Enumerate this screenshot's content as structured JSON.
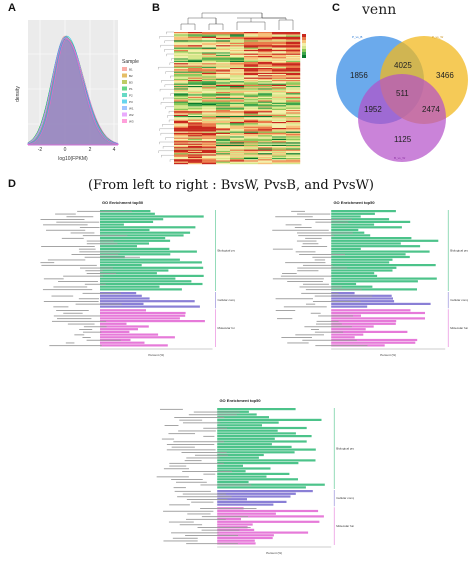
{
  "panels": {
    "a": "A",
    "b": "B",
    "c": "C",
    "d": "D"
  },
  "density": {
    "ylabel": "density",
    "xlabel": "log10(FPKM)",
    "x_ticks": [
      "-2",
      "0",
      "2",
      "4"
    ],
    "legend_title": "Sample",
    "samples": [
      "B1",
      "B2",
      "B3",
      "P1",
      "P2",
      "P3",
      "W1",
      "W2",
      "W3"
    ],
    "colors": [
      "#f8766d",
      "#d39200",
      "#93aa00",
      "#00ba38",
      "#00c19f",
      "#00b9e3",
      "#619cff",
      "#db72fb",
      "#ff61c3"
    ]
  },
  "venn": {
    "title": "venn",
    "sets": [
      {
        "name": "P_vs_B",
        "color": "#3a8ee6"
      },
      {
        "name": "P_vs_W",
        "color": "#f2b81f"
      },
      {
        "name": "B_vs_W",
        "color": "#b44fc9"
      }
    ],
    "values": {
      "only_a": "1856",
      "only_b": "3466",
      "only_c": "1125",
      "ab": "4025",
      "ac": "1952",
      "bc": "2474",
      "abc": "511"
    }
  },
  "caption": "(From left to right : BvsW, PvsB, and PvsW)",
  "go": {
    "title": "GO Enrichment top50",
    "xlabel": "Percent (%)",
    "categories": [
      "Biological process",
      "Cellular component",
      "Molecular function"
    ],
    "category_colors": [
      "#4cc38a",
      "#8a7fd6",
      "#e67ad9"
    ]
  },
  "chart_data": [
    {
      "type": "area",
      "title": "",
      "xlabel": "log10(FPKM)",
      "ylabel": "density",
      "xlim": [
        -2.5,
        5
      ],
      "series_names": [
        "B1",
        "B2",
        "B3",
        "P1",
        "P2",
        "P3",
        "W1",
        "W2",
        "W3"
      ]
    },
    {
      "type": "heatmap",
      "title": "",
      "note": "clustered expression heatmap, red=high, green=low"
    },
    {
      "type": "table",
      "title": "venn",
      "sets": [
        "P_vs_B",
        "P_vs_W",
        "B_vs_W"
      ],
      "regions": {
        "P_vs_B only": 1856,
        "P_vs_W only": 3466,
        "B_vs_W only": 1125,
        "P_vs_B & P_vs_W": 4025,
        "P_vs_B & B_vs_W": 1952,
        "P_vs_W & B_vs_W": 2474,
        "all": 511
      }
    }
  ]
}
